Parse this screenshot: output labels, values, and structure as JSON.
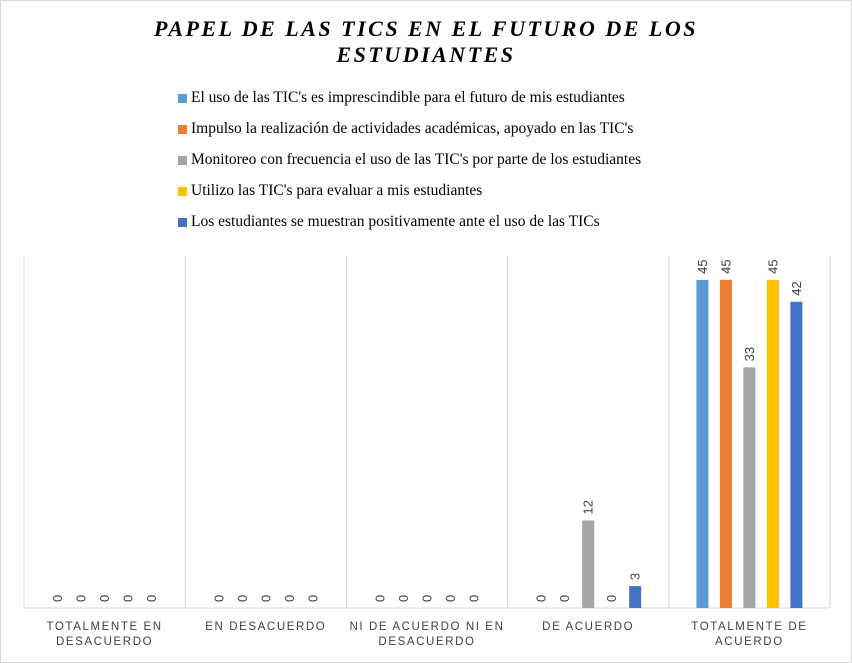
{
  "chart_data": {
    "type": "bar",
    "title": "PAPEL DE LAS TICS EN EL FUTURO DE LOS ESTUDIANTES",
    "categories": [
      [
        "TOTALMENTE EN",
        "DESACUERDO"
      ],
      [
        "EN DESACUERDO"
      ],
      [
        "NI DE ACUERDO NI EN",
        "DESACUERDO"
      ],
      [
        "DE ACUERDO"
      ],
      [
        "TOTALMENTE DE",
        "ACUERDO"
      ]
    ],
    "series": [
      {
        "name": "El uso de las TIC's es imprescindible para el futuro de mis estudiantes",
        "color": "#5b9bd5",
        "values": [
          0,
          0,
          0,
          0,
          45
        ]
      },
      {
        "name": "Impulso la realización de actividades académicas, apoyado en las TIC's",
        "color": "#ed7d31",
        "values": [
          0,
          0,
          0,
          0,
          45
        ]
      },
      {
        "name": "Monitoreo con frecuencia el uso de las TIC's  por parte de los estudiantes",
        "color": "#a5a5a5",
        "values": [
          0,
          0,
          0,
          12,
          33
        ]
      },
      {
        "name": "Utilizo las TIC's para evaluar a mis estudiantes",
        "color": "#ffc000",
        "values": [
          0,
          0,
          0,
          0,
          45
        ]
      },
      {
        "name": "Los estudiantes se muestran positivamente ante el uso de las TICs",
        "color": "#4472c4",
        "values": [
          0,
          0,
          0,
          3,
          42
        ]
      }
    ],
    "ylim": [
      0,
      50
    ],
    "legend_position": "top",
    "grid": "vertical category separators"
  }
}
